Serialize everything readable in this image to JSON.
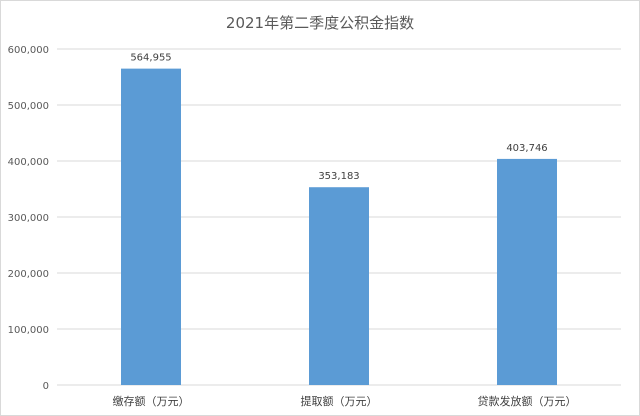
{
  "chart_data": {
    "type": "bar",
    "title": "2021年第二季度公积金指数",
    "categories": [
      "缴存额（万元）",
      "提取额（万元）",
      "贷款发放额（万元）"
    ],
    "values": [
      564955,
      353183,
      403746
    ],
    "data_labels": [
      "564,955",
      "353,183",
      "403,746"
    ],
    "ylim": [
      0,
      600000
    ],
    "yticks": [
      0,
      100000,
      200000,
      300000,
      400000,
      500000,
      600000
    ],
    "ytick_labels": [
      "0",
      "100,000",
      "200,000",
      "300,000",
      "400,000",
      "500,000",
      "600,000"
    ],
    "grid": true,
    "legend": "none",
    "bar_color": "#5b9bd5",
    "grid_color": "#d9d9d9"
  }
}
